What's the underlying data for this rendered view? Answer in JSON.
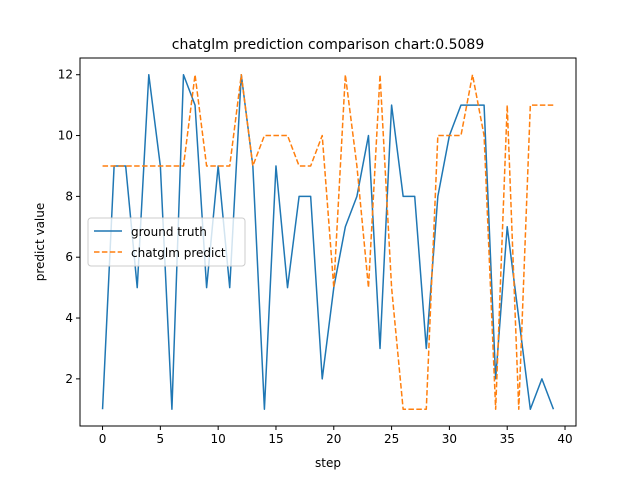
{
  "chart_data": {
    "type": "line",
    "title": "chatglm prediction comparison chart:0.5089",
    "xlabel": "step",
    "ylabel": "predict value",
    "xlim": [
      -1.95,
      40.95
    ],
    "ylim": [
      0.45,
      12.55
    ],
    "xticks": [
      0,
      5,
      10,
      15,
      20,
      25,
      30,
      35,
      40
    ],
    "yticks": [
      2,
      4,
      6,
      8,
      10,
      12
    ],
    "grid": false,
    "legend": {
      "placement": "center-left"
    },
    "x": [
      0,
      1,
      2,
      3,
      4,
      5,
      6,
      7,
      8,
      9,
      10,
      11,
      12,
      13,
      14,
      15,
      16,
      17,
      18,
      19,
      20,
      21,
      22,
      23,
      24,
      25,
      26,
      27,
      28,
      29,
      30,
      31,
      32,
      33,
      34,
      35,
      36,
      37,
      38,
      39
    ],
    "series": [
      {
        "name": "ground truth",
        "color": "#1f77b4",
        "style": "solid",
        "values": [
          1,
          9,
          9,
          5,
          12,
          9,
          1,
          12,
          11,
          5,
          9,
          5,
          12,
          9,
          1,
          9,
          5,
          8,
          8,
          2,
          5,
          7,
          8,
          10,
          3,
          11,
          8,
          8,
          3,
          8,
          10,
          11,
          11,
          11,
          2,
          7,
          4,
          1,
          2,
          1
        ]
      },
      {
        "name": "chatglm predict",
        "color": "#ff7f0e",
        "style": "dashed",
        "values": [
          9,
          9,
          9,
          9,
          9,
          9,
          9,
          9,
          12,
          9,
          9,
          9,
          12,
          9,
          10,
          10,
          10,
          9,
          9,
          10,
          5,
          12,
          9,
          5,
          12,
          5,
          1,
          1,
          1,
          10,
          10,
          10,
          12,
          10,
          1,
          11,
          1,
          11,
          11,
          11
        ]
      }
    ]
  }
}
